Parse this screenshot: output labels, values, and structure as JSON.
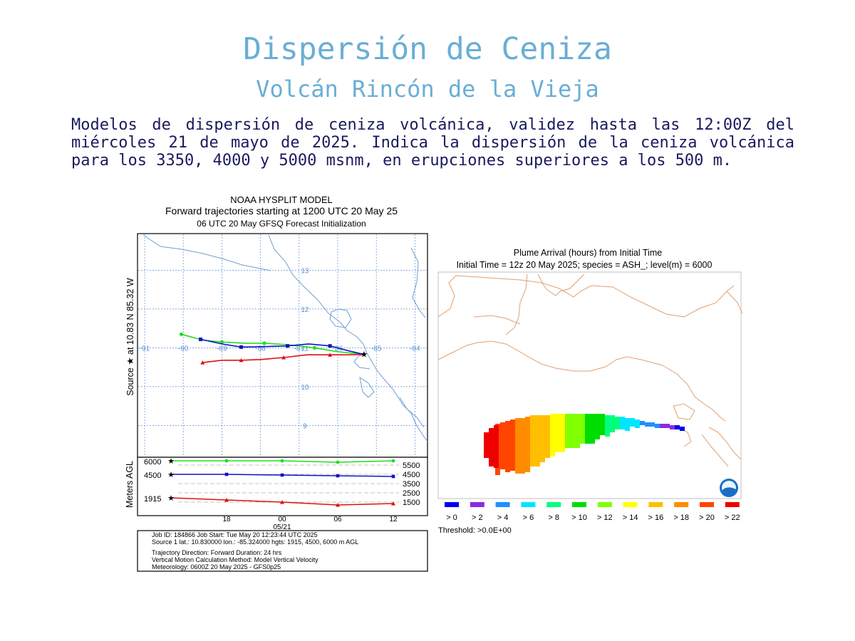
{
  "header": {
    "title": "Dispersión de Ceniza",
    "subtitle": "Volcán Rincón de la Vieja",
    "description": "Modelos de dispersión de ceniza volcánica, validez hasta las 12:00Z del miércoles 21 de mayo de 2025. Indica la dispersión de la ceniza volcánica para los 3350, 4000 y 5000 msnm, en erupciones superiores a los 500 m."
  },
  "hysplit": {
    "title1": "NOAA HYSPLIT MODEL",
    "title2": "Forward trajectories starting at 1200 UTC 20 May 25",
    "title3": "06 UTC 20 May    GFSQ  Forecast Initialization",
    "source_label": "Source ★  at   10.83 N   85.32 W",
    "height_axis_label": "Meters AGL",
    "lon_labels": [
      "-91",
      "-90",
      "-89",
      "-88",
      "-87",
      "-86",
      "-85",
      "-84"
    ],
    "lat_labels": [
      "13",
      "12",
      "11",
      "10",
      "9"
    ],
    "start_heights": [
      "6000",
      "4500",
      "1915"
    ],
    "right_heights": [
      "5500",
      "4500",
      "3500",
      "2500",
      "1500"
    ],
    "time_labels": [
      "18",
      "00",
      "06",
      "12"
    ],
    "date_label": "05/21",
    "info": [
      "Job ID: 184866                     Job Start: Tue May 20 12:23:44 UTC 2025",
      "Source 1 lat.: 10.830000  lon.: -85.324000  hgts: 1915, 4500, 6000 m AGL",
      "Trajectory Direction: Forward       Duration: 24 hrs",
      "Vertical Motion Calculation Method:       Model Vertical Velocity",
      "Meteorology: 0600Z 20 May 2025 - GFS0p25"
    ],
    "colors": {
      "green": "#22dd22",
      "blue": "#1111cc",
      "red": "#dd1111",
      "grid": "#5b8fd6",
      "coast": "#6f9fd0"
    }
  },
  "plume": {
    "title1": "Plume Arrival (hours) from Initial Time",
    "title2": "Initial Time = 12z 20 May 2025;  species = ASH_;  level(m) =  6000",
    "legend": [
      {
        "label": "> 0",
        "color": "#0000ee"
      },
      {
        "label": "> 2",
        "color": "#8a2be2"
      },
      {
        "label": "> 4",
        "color": "#1e90ff"
      },
      {
        "label": "> 6",
        "color": "#00e5ff"
      },
      {
        "label": "> 8",
        "color": "#00ff7f"
      },
      {
        "label": "> 10",
        "color": "#00dd00"
      },
      {
        "label": "> 12",
        "color": "#7fff00"
      },
      {
        "label": "> 14",
        "color": "#ffff00"
      },
      {
        "label": "> 16",
        "color": "#ffbf00"
      },
      {
        "label": "> 18",
        "color": "#ff8c00"
      },
      {
        "label": "> 20",
        "color": "#ff4500"
      },
      {
        "label": "> 22",
        "color": "#ee0000"
      }
    ],
    "threshold": "Threshold: >0.0E+00",
    "coast_color": "#e0a070"
  }
}
